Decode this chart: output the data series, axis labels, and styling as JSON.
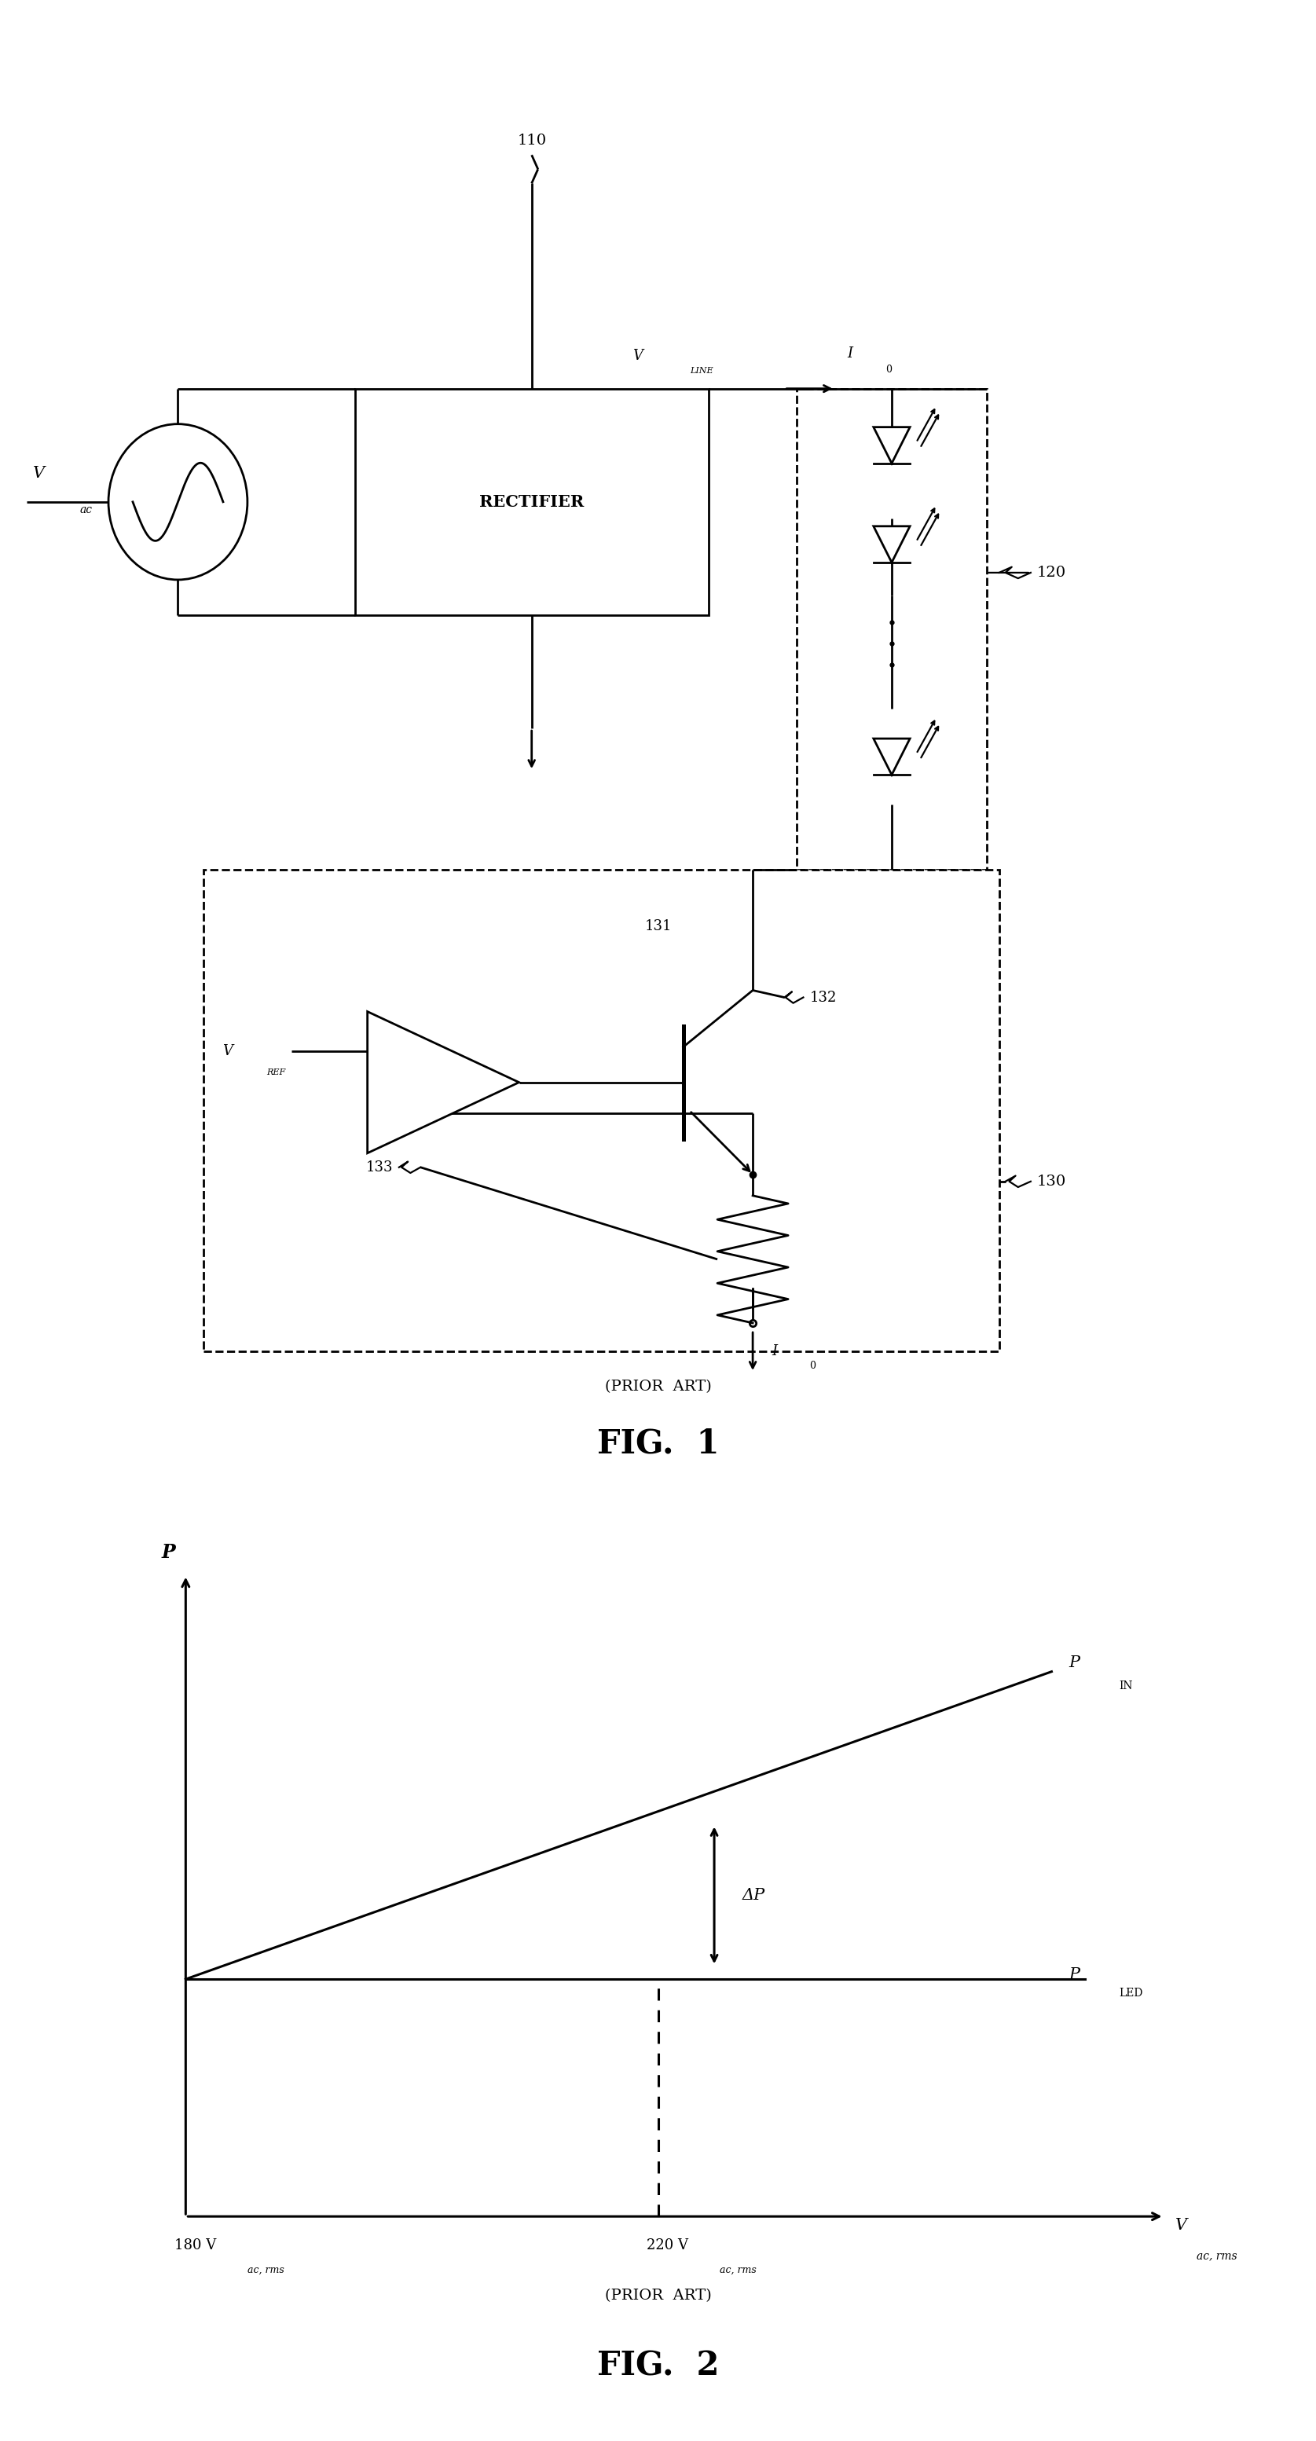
{
  "fig_width": 16.75,
  "fig_height": 31.07,
  "bg_color": "#ffffff",
  "line_color": "#000000",
  "line_width": 2.0,
  "fig1_title": "FIG.  1",
  "fig2_title": "FIG.  2",
  "prior_art": "(PRIOR  ART)",
  "labels": {
    "vac": "V",
    "vac_sub": "ac",
    "rectifier": "RECTIFIER",
    "vline": "V",
    "vline_sub": "LINE",
    "i0_top": "I",
    "i0_sub_top": "0",
    "n110": "110",
    "n120": "120",
    "n130": "130",
    "n131": "131",
    "n132": "132",
    "n133": "133",
    "vref": "V",
    "vref_sub": "REF",
    "i0_bot": "I",
    "i0_sub_bot": "0",
    "p_axis": "P",
    "pin": "P",
    "pin_sub": "IN",
    "pled": "P",
    "pled_sub": "LED",
    "deltap": "ΔP",
    "v180": "180 V",
    "v180_sub": "ac, rms",
    "v220": "220 V",
    "v220_sub": "ac, rms",
    "vac_rms": "V",
    "vac_rms_sub": "ac, rms"
  }
}
